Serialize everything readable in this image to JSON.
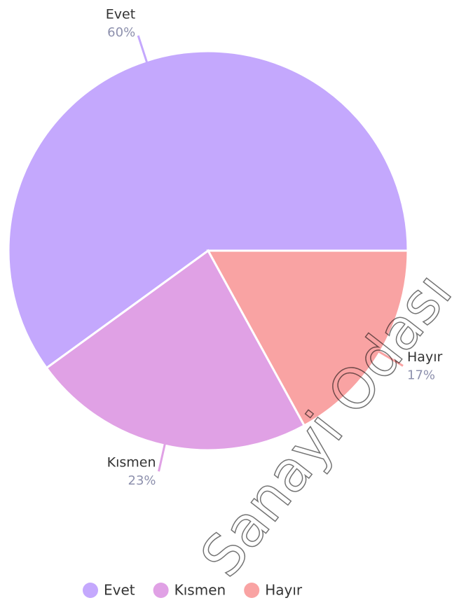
{
  "chart_data": {
    "type": "pie",
    "categories": [
      "Evet",
      "Kısmen",
      "Hayır"
    ],
    "values": [
      60,
      23,
      17
    ],
    "value_labels": [
      "60%",
      "23%",
      "17%"
    ],
    "colors": [
      "#c4a8fd",
      "#e0a1e5",
      "#f9a3a3"
    ],
    "legend": "bottom",
    "watermark": "Sanayi Odası"
  }
}
